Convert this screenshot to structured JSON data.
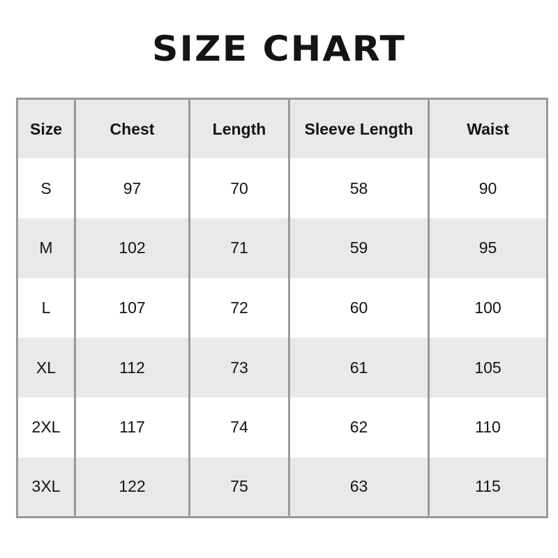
{
  "title": "SIZE CHART",
  "colors": {
    "background": "#ffffff",
    "header_row_bg": "#e9e9e9",
    "alt_row_bg": "#e9e9e9",
    "row_bg": "#ffffff",
    "border": "#999999",
    "text": "#141414"
  },
  "chart_data": {
    "type": "table",
    "title": "SIZE CHART",
    "columns": [
      "Size",
      "Chest",
      "Length",
      "Sleeve Length",
      "Waist"
    ],
    "rows": [
      [
        "S",
        "97",
        "70",
        "58",
        "90"
      ],
      [
        "M",
        "102",
        "71",
        "59",
        "95"
      ],
      [
        "L",
        "107",
        "72",
        "60",
        "100"
      ],
      [
        "XL",
        "112",
        "73",
        "61",
        "105"
      ],
      [
        "2XL",
        "117",
        "74",
        "62",
        "110"
      ],
      [
        "3XL",
        "122",
        "75",
        "63",
        "115"
      ]
    ],
    "layout_hints": {
      "header_background": "light-gray",
      "alternating_rows": true,
      "vertical_separators_only": true,
      "text_alignment": "center"
    }
  }
}
